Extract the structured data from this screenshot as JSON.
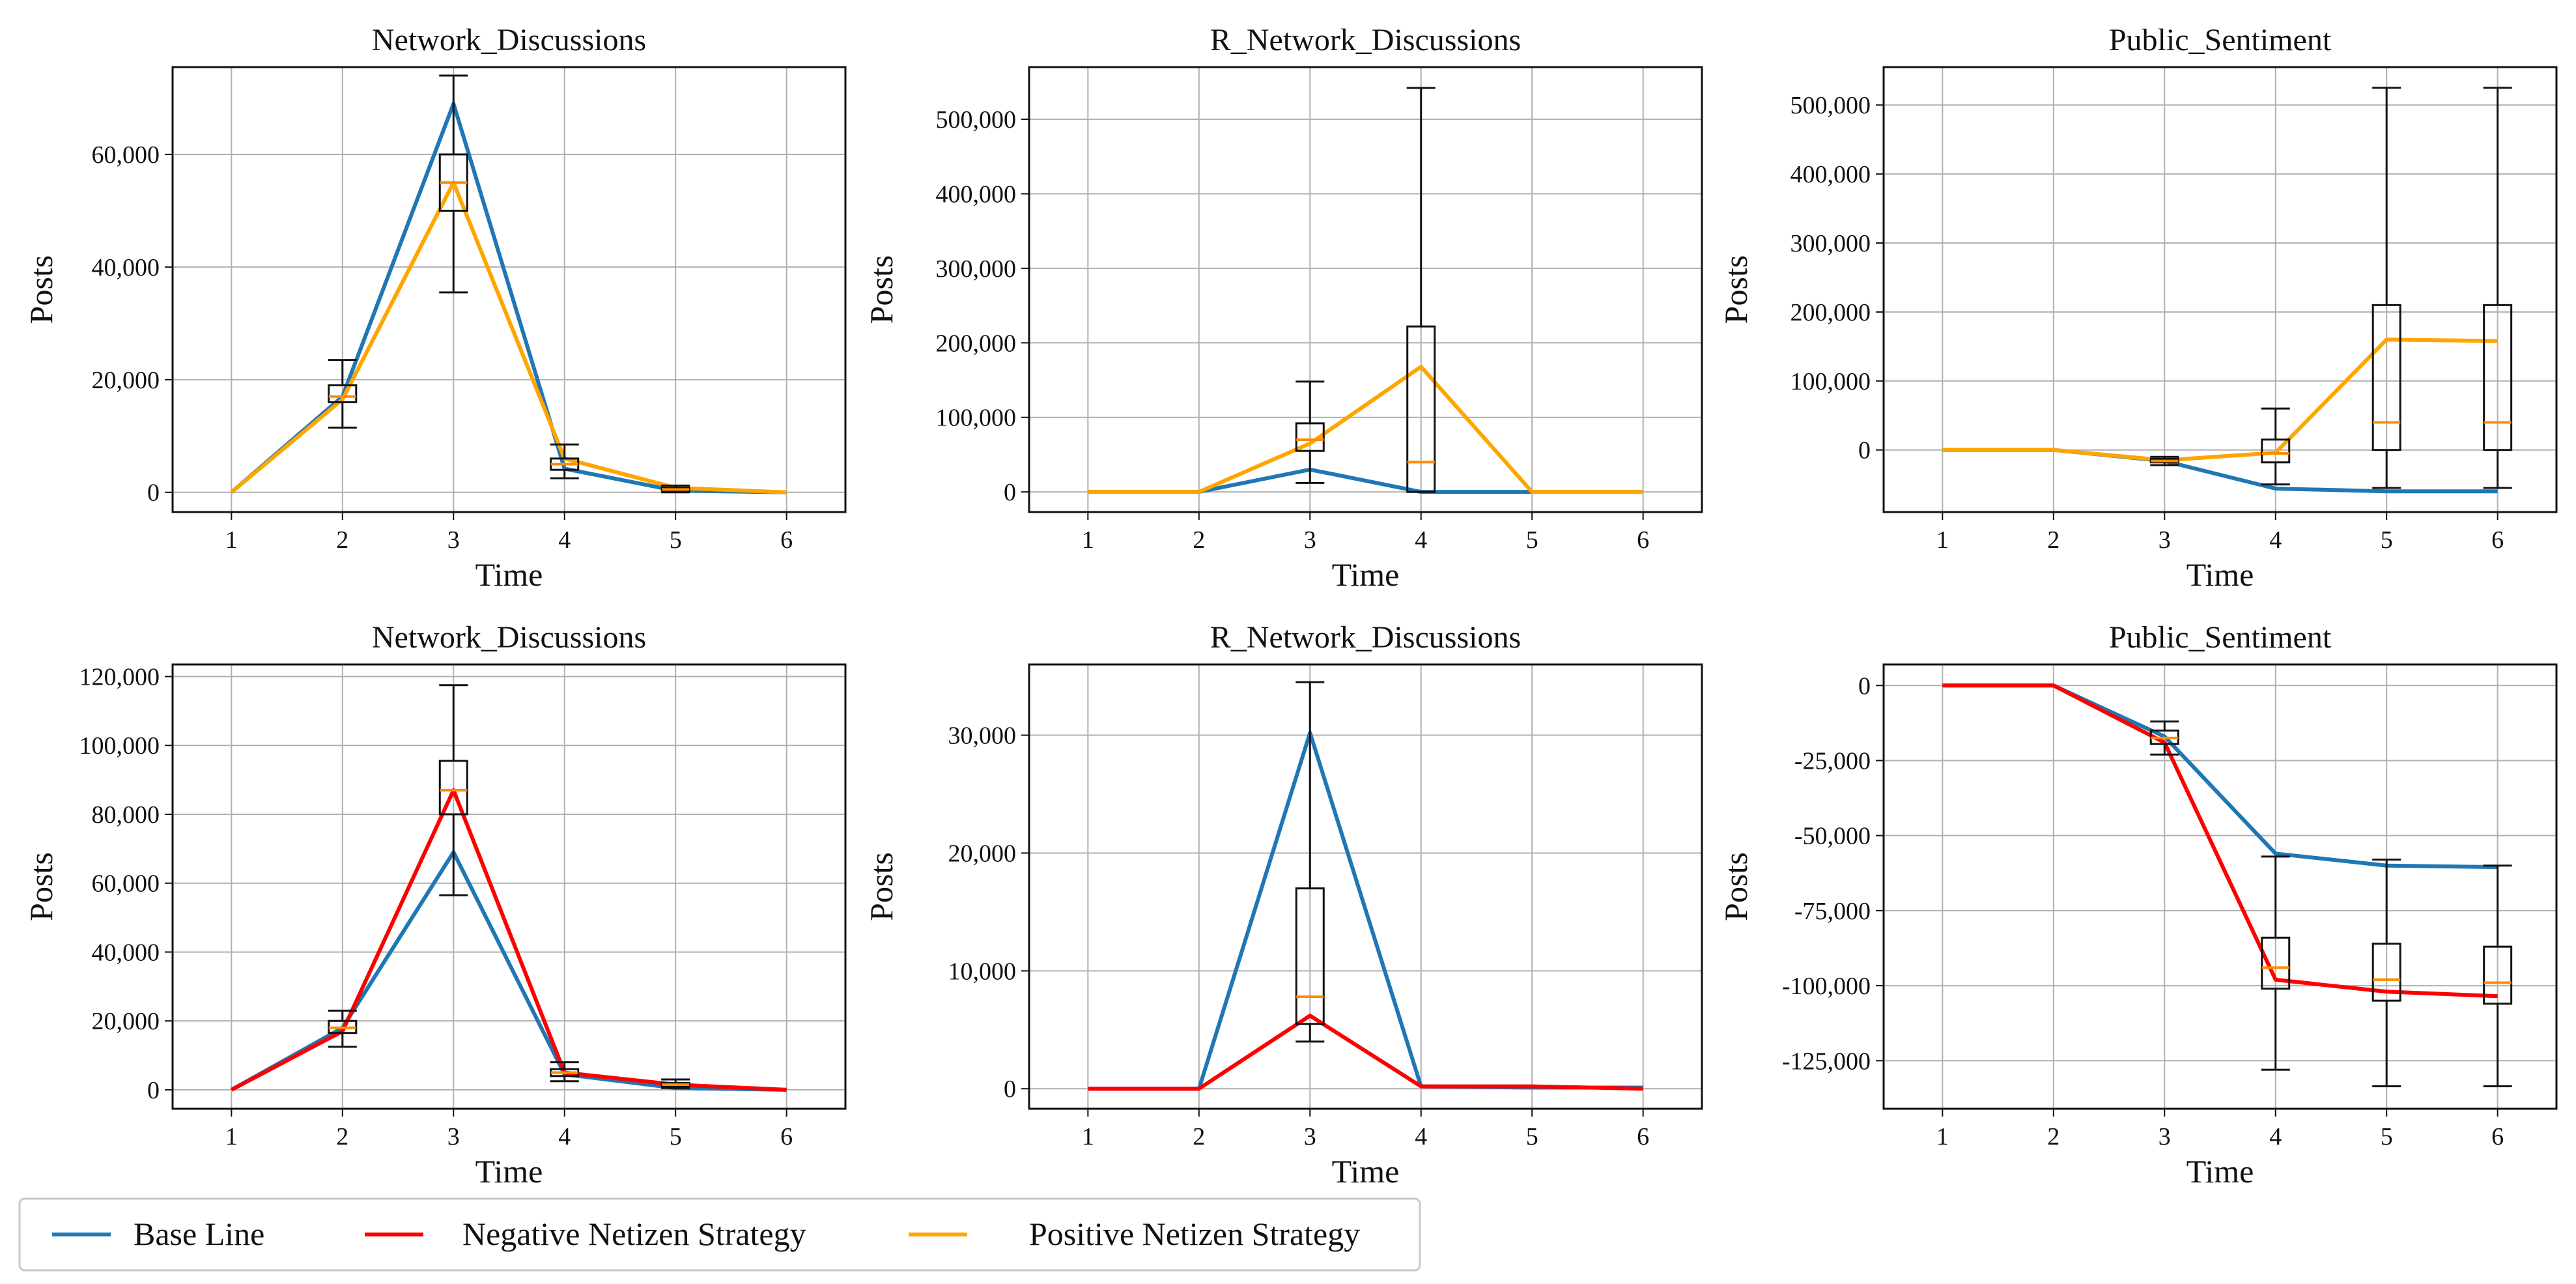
{
  "figure": {
    "legend": {
      "placement": "bottom-left",
      "entries": [
        {
          "name": "Base Line",
          "color": "#1f77b4"
        },
        {
          "name": "Negative Netizen Strategy",
          "color": "#ff0000"
        },
        {
          "name": "Positive Netizen Strategy",
          "color": "#ffa500"
        }
      ]
    }
  },
  "chart_data": [
    {
      "type": "line",
      "title": "Network_Discussions",
      "xlabel": "Time",
      "ylabel": "Posts",
      "x": [
        1,
        2,
        3,
        4,
        5,
        6
      ],
      "xticks": [
        "1",
        "2",
        "3",
        "4",
        "5",
        "6"
      ],
      "ylim": [
        -3500,
        75500
      ],
      "yticks": [
        0,
        20000,
        40000,
        60000
      ],
      "yticklabels": [
        "0",
        "20,000",
        "40,000",
        "60,000"
      ],
      "grid": true,
      "series": [
        {
          "name": "Base Line",
          "color": "#1f77b4",
          "values": [
            0,
            17000,
            69000,
            4200,
            300,
            0
          ]
        },
        {
          "name": "Positive Netizen Strategy",
          "color": "#ffa500",
          "values": [
            0,
            16500,
            55000,
            6000,
            800,
            0
          ]
        }
      ],
      "boxes": [
        {
          "x": 2,
          "whislo": 11500,
          "q1": 16000,
          "med": 17000,
          "q3": 19000,
          "whishi": 23500
        },
        {
          "x": 3,
          "whislo": 35500,
          "q1": 50000,
          "med": 55000,
          "q3": 60000,
          "whishi": 74000
        },
        {
          "x": 4,
          "whislo": 2500,
          "q1": 4000,
          "med": 5000,
          "q3": 6000,
          "whishi": 8500
        },
        {
          "x": 5,
          "whislo": 0,
          "q1": 300,
          "med": 500,
          "q3": 800,
          "whishi": 1200
        }
      ]
    },
    {
      "type": "line",
      "title": "R_Network_Discussions",
      "xlabel": "Time",
      "ylabel": "Posts",
      "x": [
        1,
        2,
        3,
        4,
        5,
        6
      ],
      "xticks": [
        "1",
        "2",
        "3",
        "4",
        "5",
        "6"
      ],
      "ylim": [
        -27000,
        570000
      ],
      "yticks": [
        0,
        100000,
        200000,
        300000,
        400000,
        500000
      ],
      "yticklabels": [
        "0",
        "100,000",
        "200,000",
        "300,000",
        "400,000",
        "500,000"
      ],
      "grid": true,
      "series": [
        {
          "name": "Base Line",
          "color": "#1f77b4",
          "values": [
            0,
            0,
            30000,
            0,
            0,
            0
          ]
        },
        {
          "name": "Positive Netizen Strategy",
          "color": "#ffa500",
          "values": [
            0,
            0,
            65000,
            168000,
            0,
            0
          ]
        }
      ],
      "boxes": [
        {
          "x": 3,
          "whislo": 12000,
          "q1": 55000,
          "med": 70000,
          "q3": 92000,
          "whishi": 148000
        },
        {
          "x": 4,
          "whislo": 0,
          "q1": 0,
          "med": 40000,
          "q3": 222000,
          "whishi": 542000
        }
      ]
    },
    {
      "type": "line",
      "title": "Public_Sentiment",
      "xlabel": "Time",
      "ylabel": "Posts",
      "x": [
        1,
        2,
        3,
        4,
        5,
        6
      ],
      "xticks": [
        "1",
        "2",
        "3",
        "4",
        "5",
        "6"
      ],
      "ylim": [
        -90000,
        555000
      ],
      "yticks": [
        0,
        100000,
        200000,
        300000,
        400000,
        500000
      ],
      "yticklabels": [
        "0",
        "100,000",
        "200,000",
        "300,000",
        "400,000",
        "500,000"
      ],
      "grid": true,
      "series": [
        {
          "name": "Base Line",
          "color": "#1f77b4",
          "values": [
            0,
            0,
            -16000,
            -56000,
            -60000,
            -60000
          ]
        },
        {
          "name": "Positive Netizen Strategy",
          "color": "#ffa500",
          "values": [
            0,
            0,
            -15000,
            -4000,
            160000,
            158000
          ]
        }
      ],
      "boxes": [
        {
          "x": 3,
          "whislo": -22000,
          "q1": -18000,
          "med": -16000,
          "q3": -13000,
          "whishi": -10000
        },
        {
          "x": 4,
          "whislo": -50000,
          "q1": -18000,
          "med": -5000,
          "q3": 15000,
          "whishi": 60000
        },
        {
          "x": 5,
          "whislo": -55000,
          "q1": 0,
          "med": 40000,
          "q3": 210000,
          "whishi": 525000
        },
        {
          "x": 6,
          "whislo": -55000,
          "q1": 0,
          "med": 40000,
          "q3": 210000,
          "whishi": 525000
        }
      ]
    },
    {
      "type": "line",
      "title": "Network_Discussions",
      "xlabel": "Time",
      "ylabel": "Posts",
      "x": [
        1,
        2,
        3,
        4,
        5,
        6
      ],
      "xticks": [
        "1",
        "2",
        "3",
        "4",
        "5",
        "6"
      ],
      "ylim": [
        -5500,
        123500
      ],
      "yticks": [
        0,
        20000,
        40000,
        60000,
        80000,
        100000,
        120000
      ],
      "yticklabels": [
        "0",
        "20,000",
        "40,000",
        "60,000",
        "80,000",
        "100,000",
        "120,000"
      ],
      "grid": true,
      "series": [
        {
          "name": "Base Line",
          "color": "#1f77b4",
          "values": [
            0,
            18000,
            69000,
            4500,
            500,
            0
          ]
        },
        {
          "name": "Negative Netizen Strategy",
          "color": "#ff0000",
          "values": [
            0,
            17000,
            87000,
            5000,
            1500,
            0
          ]
        }
      ],
      "boxes": [
        {
          "x": 2,
          "whislo": 12500,
          "q1": 16500,
          "med": 18000,
          "q3": 20000,
          "whishi": 23000
        },
        {
          "x": 3,
          "whislo": 56500,
          "q1": 80000,
          "med": 87000,
          "q3": 95500,
          "whishi": 117500
        },
        {
          "x": 4,
          "whislo": 2500,
          "q1": 4000,
          "med": 5000,
          "q3": 6000,
          "whishi": 8000
        },
        {
          "x": 5,
          "whislo": 500,
          "q1": 1000,
          "med": 1500,
          "q3": 2000,
          "whishi": 3000
        }
      ]
    },
    {
      "type": "line",
      "title": "R_Network_Discussions",
      "xlabel": "Time",
      "ylabel": "Posts",
      "x": [
        1,
        2,
        3,
        4,
        5,
        6
      ],
      "xticks": [
        "1",
        "2",
        "3",
        "4",
        "5",
        "6"
      ],
      "ylim": [
        -1700,
        36000
      ],
      "yticks": [
        0,
        10000,
        20000,
        30000
      ],
      "yticklabels": [
        "0",
        "10,000",
        "20,000",
        "30,000"
      ],
      "grid": true,
      "series": [
        {
          "name": "Base Line",
          "color": "#1f77b4",
          "values": [
            0,
            0,
            30200,
            200,
            100,
            100
          ]
        },
        {
          "name": "Negative Netizen Strategy",
          "color": "#ff0000",
          "values": [
            0,
            0,
            6200,
            200,
            200,
            0
          ]
        }
      ],
      "boxes": [
        {
          "x": 3,
          "whislo": 4000,
          "q1": 5500,
          "med": 7800,
          "q3": 17000,
          "whishi": 34500
        }
      ]
    },
    {
      "type": "line",
      "title": "Public_Sentiment",
      "xlabel": "Time",
      "ylabel": "Posts",
      "x": [
        1,
        2,
        3,
        4,
        5,
        6
      ],
      "xticks": [
        "1",
        "2",
        "3",
        "4",
        "5",
        "6"
      ],
      "ylim": [
        -141000,
        7000
      ],
      "yticks": [
        0,
        -25000,
        -50000,
        -75000,
        -100000,
        -125000
      ],
      "yticklabels": [
        "0",
        "-25,000",
        "-50,000",
        "-75,000",
        "-100,000",
        "-125,000"
      ],
      "grid": true,
      "series": [
        {
          "name": "Base Line",
          "color": "#1f77b4",
          "values": [
            0,
            0,
            -17000,
            -56000,
            -60000,
            -60500
          ]
        },
        {
          "name": "Negative Netizen Strategy",
          "color": "#ff0000",
          "values": [
            0,
            0,
            -19000,
            -98000,
            -102000,
            -103500
          ]
        }
      ],
      "boxes": [
        {
          "x": 3,
          "whislo": -23000,
          "q1": -19500,
          "med": -17500,
          "q3": -15000,
          "whishi": -12000
        },
        {
          "x": 4,
          "whislo": -128000,
          "q1": -101000,
          "med": -94000,
          "q3": -84000,
          "whishi": -57000
        },
        {
          "x": 5,
          "whislo": -133500,
          "q1": -105000,
          "med": -98000,
          "q3": -86000,
          "whishi": -58000
        },
        {
          "x": 6,
          "whislo": -133500,
          "q1": -106000,
          "med": -99000,
          "q3": -87000,
          "whishi": -60000
        }
      ]
    }
  ]
}
